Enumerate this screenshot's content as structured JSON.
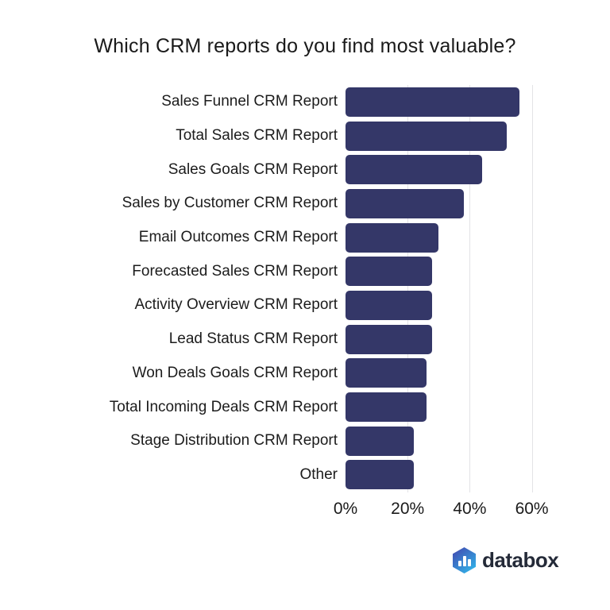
{
  "title": "Which CRM reports do you find most valuable?",
  "chart_data": {
    "type": "bar",
    "orientation": "horizontal",
    "title": "Which CRM reports do you find most valuable?",
    "categories": [
      "Sales Funnel CRM Report",
      "Total Sales CRM Report",
      "Sales Goals CRM Report",
      "Sales by Customer CRM Report",
      "Email Outcomes CRM Report",
      "Forecasted Sales CRM Report",
      "Activity Overview CRM Report",
      "Lead Status CRM Report",
      "Won Deals Goals CRM Report",
      "Total Incoming Deals CRM Report",
      "Stage Distribution CRM Report",
      "Other"
    ],
    "values": [
      56,
      52,
      44,
      38,
      30,
      28,
      28,
      28,
      26,
      26,
      22,
      22
    ],
    "value_unit": "%",
    "x_ticks": [
      {
        "label": "0%",
        "value": 0
      },
      {
        "label": "20%",
        "value": 20
      },
      {
        "label": "40%",
        "value": 40
      },
      {
        "label": "60%",
        "value": 60
      }
    ],
    "xlim": [
      0,
      64
    ],
    "grid": "vertical",
    "legend": "none",
    "bar_color": "#343768",
    "gridline_color": "#e3e3e6"
  },
  "logo": {
    "text": "databox",
    "icon_name": "databox-logo-icon",
    "icon_gradient_start": "#4150b4",
    "icon_gradient_end": "#31b2e8",
    "text_color": "#242a38"
  },
  "colors": {
    "background": "#ffffff",
    "title_text": "#1a1a1a",
    "label_text": "#1c1c1c",
    "axis_text": "#1a1a1a"
  }
}
